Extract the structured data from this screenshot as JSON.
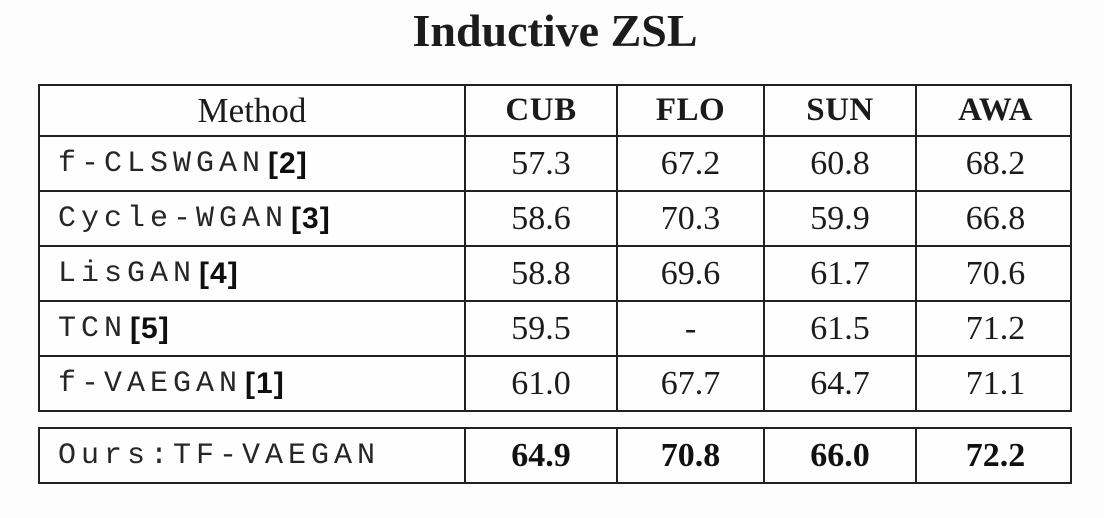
{
  "title": "Inductive ZSL",
  "colors": {
    "border": "#212121",
    "text": "#1b1b1b",
    "background": "#fdfdfd"
  },
  "chart_data": {
    "type": "table",
    "title": "Inductive ZSL",
    "columns": [
      "Method",
      "CUB",
      "FLO",
      "SUN",
      "AWA"
    ],
    "rows": [
      {
        "method": "f-CLSWGAN",
        "cite": "[2]",
        "values": [
          "57.3",
          "67.2",
          "60.8",
          "68.2"
        ]
      },
      {
        "method": "Cycle-WGAN",
        "cite": "[3]",
        "values": [
          "58.6",
          "70.3",
          "59.9",
          "66.8"
        ]
      },
      {
        "method": "LisGAN",
        "cite": "[4]",
        "values": [
          "58.8",
          "69.6",
          "61.7",
          "70.6"
        ]
      },
      {
        "method": "TCN",
        "cite": "[5]",
        "values": [
          "59.5",
          "-",
          "61.5",
          "71.2"
        ]
      },
      {
        "method": "f-VAEGAN",
        "cite": "[1]",
        "values": [
          "61.0",
          "67.7",
          "64.7",
          "71.1"
        ]
      }
    ],
    "ours_row": {
      "method": "Ours:TF-VAEGAN",
      "values": [
        "64.9",
        "70.8",
        "66.0",
        "72.2"
      ]
    }
  }
}
